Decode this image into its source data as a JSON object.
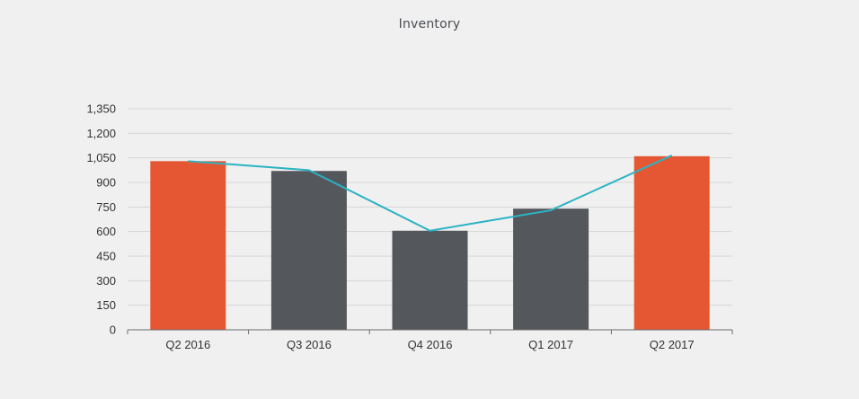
{
  "chart_data": {
    "type": "bar",
    "title": "Inventory",
    "xlabel": "",
    "ylabel": "",
    "categories": [
      "Q2 2016",
      "Q3 2016",
      "Q4 2016",
      "Q1 2017",
      "Q2 2017"
    ],
    "series": [
      {
        "type": "bar",
        "values": [
          1030,
          970,
          605,
          740,
          1060
        ],
        "colors": [
          "#e55632",
          "#54575b",
          "#54575b",
          "#54575b",
          "#e55632"
        ]
      },
      {
        "type": "line",
        "values": [
          1030,
          975,
          605,
          730,
          1065
        ],
        "color": "#2bb3c3"
      }
    ],
    "ylim": [
      0,
      1350
    ],
    "yticks": [
      0,
      150,
      300,
      450,
      600,
      750,
      900,
      1050,
      1200,
      1350
    ],
    "ytick_labels": [
      "0",
      "150",
      "300",
      "450",
      "600",
      "750",
      "900",
      "1,050",
      "1,200",
      "1,350"
    ],
    "grid": true,
    "legend": "none"
  }
}
